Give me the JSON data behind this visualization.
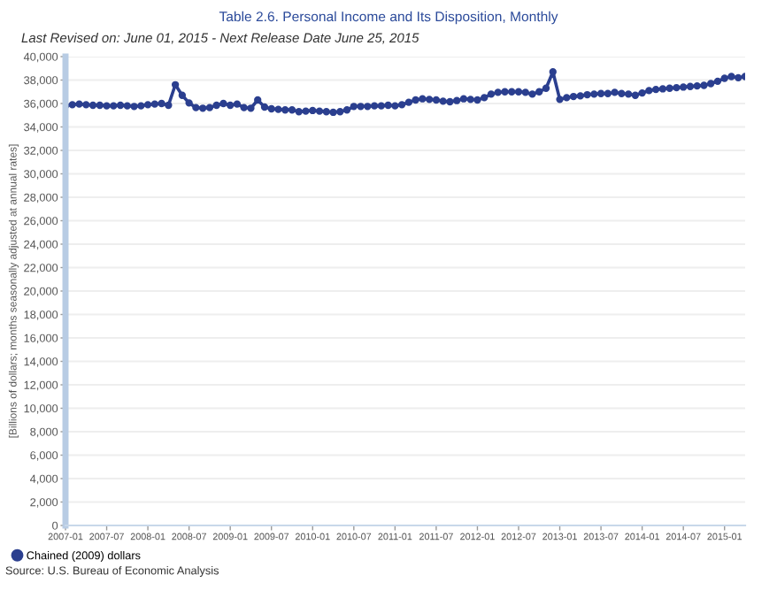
{
  "chart_data": {
    "type": "line",
    "title": "Table 2.6. Personal Income and Its Disposition, Monthly",
    "subtitle": "Last Revised on: June 01, 2015 - Next Release Date June 25, 2015",
    "ylabel": "[Billions of dollars; months seasonally adjusted at annual rates]",
    "annotations": [
      "Source: U.S. Bureau of Economic Analysis"
    ],
    "x": [
      "2007-01",
      "2007-02",
      "2007-03",
      "2007-04",
      "2007-05",
      "2007-06",
      "2007-07",
      "2007-08",
      "2007-09",
      "2007-10",
      "2007-11",
      "2007-12",
      "2008-01",
      "2008-02",
      "2008-03",
      "2008-04",
      "2008-05",
      "2008-06",
      "2008-07",
      "2008-08",
      "2008-09",
      "2008-10",
      "2008-11",
      "2008-12",
      "2009-01",
      "2009-02",
      "2009-03",
      "2009-04",
      "2009-05",
      "2009-06",
      "2009-07",
      "2009-08",
      "2009-09",
      "2009-10",
      "2009-11",
      "2009-12",
      "2010-01",
      "2010-02",
      "2010-03",
      "2010-04",
      "2010-05",
      "2010-06",
      "2010-07",
      "2010-08",
      "2010-09",
      "2010-10",
      "2010-11",
      "2010-12",
      "2011-01",
      "2011-02",
      "2011-03",
      "2011-04",
      "2011-05",
      "2011-06",
      "2011-07",
      "2011-08",
      "2011-09",
      "2011-10",
      "2011-11",
      "2011-12",
      "2012-01",
      "2012-02",
      "2012-03",
      "2012-04",
      "2012-05",
      "2012-06",
      "2012-07",
      "2012-08",
      "2012-09",
      "2012-10",
      "2012-11",
      "2012-12",
      "2013-01",
      "2013-02",
      "2013-03",
      "2013-04",
      "2013-05",
      "2013-06",
      "2013-07",
      "2013-08",
      "2013-09",
      "2013-10",
      "2013-11",
      "2013-12",
      "2014-01",
      "2014-02",
      "2014-03",
      "2014-04",
      "2014-05",
      "2014-06",
      "2014-07",
      "2014-08",
      "2014-09",
      "2014-10",
      "2014-11",
      "2014-12",
      "2015-01",
      "2015-02",
      "2015-03",
      "2015-04"
    ],
    "series": [
      {
        "name": "Chained (2009) dollars",
        "color": "#2b3f8f",
        "values": [
          35800,
          35900,
          35950,
          35900,
          35850,
          35850,
          35800,
          35800,
          35850,
          35800,
          35750,
          35800,
          35900,
          35950,
          36000,
          35850,
          37600,
          36700,
          36050,
          35650,
          35600,
          35650,
          35850,
          36000,
          35850,
          35950,
          35650,
          35600,
          36300,
          35700,
          35550,
          35500,
          35450,
          35450,
          35300,
          35350,
          35400,
          35350,
          35300,
          35250,
          35300,
          35450,
          35750,
          35750,
          35750,
          35800,
          35800,
          35850,
          35800,
          35900,
          36100,
          36300,
          36400,
          36350,
          36300,
          36200,
          36150,
          36250,
          36400,
          36350,
          36300,
          36500,
          36800,
          36950,
          37000,
          37000,
          37000,
          36950,
          36800,
          37000,
          37300,
          38700,
          36350,
          36500,
          36600,
          36650,
          36750,
          36800,
          36850,
          36850,
          36950,
          36850,
          36800,
          36700,
          36900,
          37100,
          37200,
          37250,
          37300,
          37350,
          37400,
          37450,
          37500,
          37550,
          37700,
          37900,
          38150,
          38300,
          38200,
          38300
        ]
      }
    ],
    "xlim": [
      "2007-01",
      "2015-04"
    ],
    "xticks": [
      "2007-01",
      "2007-07",
      "2008-01",
      "2008-07",
      "2009-01",
      "2009-07",
      "2010-01",
      "2010-07",
      "2011-01",
      "2011-07",
      "2012-01",
      "2012-07",
      "2013-01",
      "2013-07",
      "2014-01",
      "2014-07",
      "2015-01"
    ],
    "ylim": [
      0,
      40000
    ],
    "yticks": [
      {
        "value": 0,
        "label": "0"
      },
      {
        "value": 2000,
        "label": "2,000"
      },
      {
        "value": 4000,
        "label": "4,000"
      },
      {
        "value": 6000,
        "label": "6,000"
      },
      {
        "value": 8000,
        "label": "8,000"
      },
      {
        "value": 10000,
        "label": "10,000"
      },
      {
        "value": 12000,
        "label": "12,000"
      },
      {
        "value": 14000,
        "label": "14,000"
      },
      {
        "value": 16000,
        "label": "16,000"
      },
      {
        "value": 18000,
        "label": "18,000"
      },
      {
        "value": 20000,
        "label": "20,000"
      },
      {
        "value": 22000,
        "label": "22,000"
      },
      {
        "value": 24000,
        "label": "24,000"
      },
      {
        "value": 26000,
        "label": "26,000"
      },
      {
        "value": 28000,
        "label": "28,000"
      },
      {
        "value": 30000,
        "label": "30,000"
      },
      {
        "value": 32000,
        "label": "32,000"
      },
      {
        "value": 34000,
        "label": "34,000"
      },
      {
        "value": 36000,
        "label": "36,000"
      },
      {
        "value": 38000,
        "label": "38,000"
      },
      {
        "value": 40000,
        "label": "40,000"
      }
    ],
    "grid": "y",
    "legend": "bottom left",
    "marker": "circle",
    "line_style": "solid"
  }
}
